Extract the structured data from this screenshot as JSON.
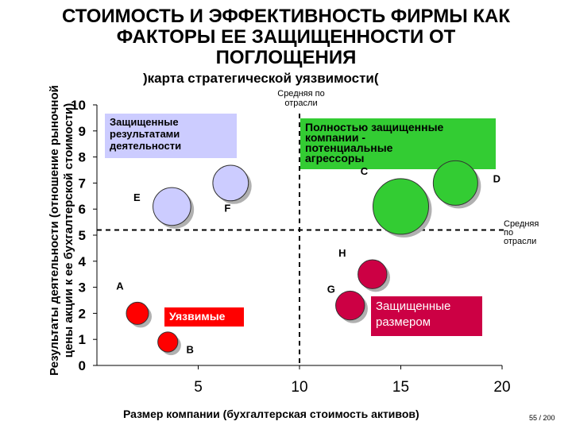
{
  "title": "СТОИМОСТЬ И ЭФФЕКТИВНОСТЬ ФИРМЫ КАК\nФАКТОРЫ ЕЕ ЗАЩИЩЕННОСТИ ОТ\nПОГЛОЩЕНИЯ",
  "subtitle": ")карта стратегической уязвимости(",
  "y_axis_label": "Результаты деятельности (отношение рыночной\nцены акции к ее бухгалтерской стоимости)",
  "x_axis_label": "Размер компании (бухгалтерская стоимость активов)",
  "page_number": "55 / 200",
  "vertical_reference_label": [
    "Средняя по",
    "отрасли"
  ],
  "horizontal_reference_label": [
    "Средняя",
    "по",
    "отрасли"
  ],
  "quadrants": {
    "top_left": {
      "lines": [
        "Защищенные",
        "результатами",
        "деятельности"
      ],
      "color": "#ccccff",
      "text_color": "#000000"
    },
    "top_right": {
      "lines": [
        "Полностью защищенные",
        "компании -",
        "потенциальные",
        "агрессоры"
      ],
      "color": "#33cc33",
      "text_color": "#000000"
    },
    "bottom_left": {
      "lines": [
        "Уязвимые"
      ],
      "color": "#ff0000",
      "text_color": "#ffffff"
    },
    "bottom_right": {
      "lines": [
        "Защищенные",
        "размером"
      ],
      "color": "#cc0044",
      "text_color": "#ffffff"
    }
  },
  "chart_data": {
    "type": "scatter",
    "xlim": [
      0,
      20
    ],
    "ylim": [
      0,
      10
    ],
    "x_ticks": [
      5,
      10,
      15,
      20
    ],
    "y_ticks": [
      0,
      1,
      2,
      3,
      4,
      5,
      6,
      7,
      8,
      9,
      10
    ],
    "reference_lines": {
      "x": 10,
      "y": 5.2
    },
    "firms": [
      {
        "label": "A",
        "x": 2.0,
        "y": 2.0,
        "size": 1.0,
        "color": "#ff0000"
      },
      {
        "label": "B",
        "x": 3.5,
        "y": 0.9,
        "size": 0.9,
        "color": "#ff0000"
      },
      {
        "label": "E",
        "x": 3.7,
        "y": 6.1,
        "size": 1.7,
        "color": "#ccccff"
      },
      {
        "label": "F",
        "x": 6.6,
        "y": 7.0,
        "size": 1.6,
        "color": "#ccccff"
      },
      {
        "label": "G",
        "x": 12.5,
        "y": 2.3,
        "size": 1.3,
        "color": "#cc0044"
      },
      {
        "label": "H",
        "x": 13.6,
        "y": 3.5,
        "size": 1.3,
        "color": "#cc0044"
      },
      {
        "label": "C",
        "x": 15.0,
        "y": 6.1,
        "size": 2.5,
        "color": "#33cc33"
      },
      {
        "label": "D",
        "x": 17.7,
        "y": 7.0,
        "size": 2.0,
        "color": "#33cc33"
      }
    ]
  }
}
